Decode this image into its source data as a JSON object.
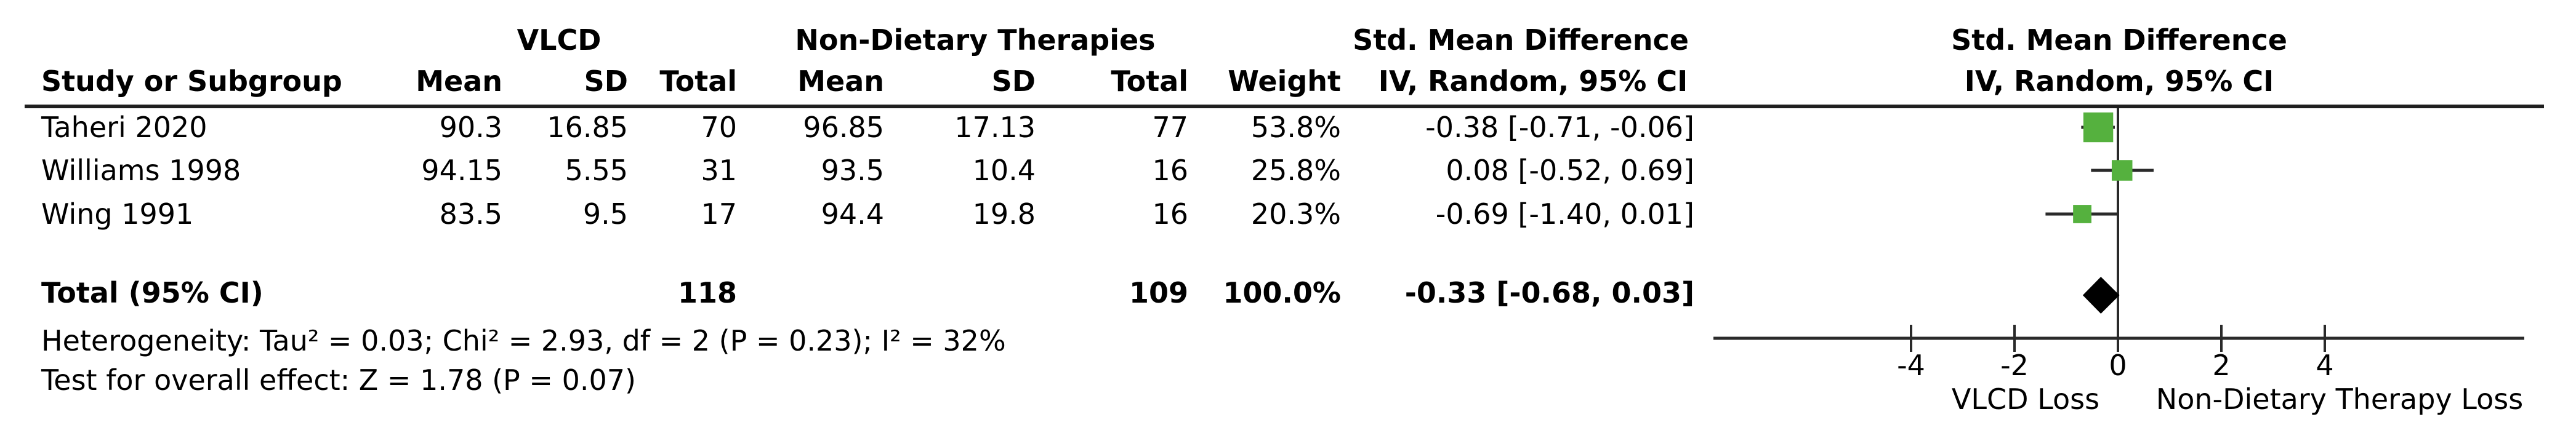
{
  "table": {
    "headers": {
      "group_experimental": "VLCD",
      "group_control": "Non-Dietary Therapies",
      "effect_line1": "Std. Mean Difference",
      "effect_line2": "IV, Random, 95% CI",
      "plot_line1": "Std. Mean Difference",
      "plot_line2": "IV, Random, 95% CI",
      "study": "Study or Subgroup",
      "mean1": "Mean",
      "sd1": "SD",
      "total1": "Total",
      "mean2": "Mean",
      "sd2": "SD",
      "total2": "Total",
      "weight": "Weight"
    },
    "rows": [
      {
        "study": "Taheri 2020",
        "mean1": "90.3",
        "sd1": "16.85",
        "total1": "70",
        "mean2": "96.85",
        "sd2": "17.13",
        "total2": "77",
        "weight": "53.8%",
        "ci": "-0.38 [-0.71, -0.06]"
      },
      {
        "study": "Williams 1998",
        "mean1": "94.15",
        "sd1": "5.55",
        "total1": "31",
        "mean2": "93.5",
        "sd2": "10.4",
        "total2": "16",
        "weight": "25.8%",
        "ci": "0.08 [-0.52, 0.69]"
      },
      {
        "study": "Wing 1991",
        "mean1": "83.5",
        "sd1": "9.5",
        "total1": "17",
        "mean2": "94.4",
        "sd2": "19.8",
        "total2": "16",
        "weight": "20.3%",
        "ci": "-0.69 [-1.40, 0.01]"
      }
    ],
    "total_row": {
      "label": "Total (95% CI)",
      "total1": "118",
      "total2": "109",
      "weight": "100.0%",
      "ci": "-0.33 [-0.68, 0.03]"
    },
    "footnotes": {
      "heterogeneity": "Heterogeneity: Tau² = 0.03; Chi² = 2.93, df = 2 (P = 0.23); I² = 32%",
      "overall_effect": "Test for overall effect: Z = 1.78 (P = 0.07)"
    }
  },
  "chart_data": {
    "type": "forest",
    "title": "Std. Mean Difference",
    "method": "IV, Random, 95% CI",
    "studies": [
      {
        "name": "Taheri 2020",
        "est": -0.38,
        "ci_low": -0.71,
        "ci_high": -0.06,
        "weight_pct": 53.8
      },
      {
        "name": "Williams 1998",
        "est": 0.08,
        "ci_low": -0.52,
        "ci_high": 0.69,
        "weight_pct": 25.8
      },
      {
        "name": "Wing 1991",
        "est": -0.69,
        "ci_low": -1.4,
        "ci_high": 0.01,
        "weight_pct": 20.3
      }
    ],
    "total": {
      "label": "Total (95% CI)",
      "est": -0.33,
      "ci_low": -0.68,
      "ci_high": 0.03
    },
    "axis": {
      "ticks": [
        -4,
        -2,
        0,
        2,
        4
      ],
      "xlim": [
        -7.8,
        7.9
      ],
      "label_left": "VLCD Loss",
      "label_right": "Non-Dietary Therapy Loss"
    },
    "marker_color": "#55b13e",
    "diamond_color": "#000000",
    "line_color": "#2a2a2a"
  }
}
